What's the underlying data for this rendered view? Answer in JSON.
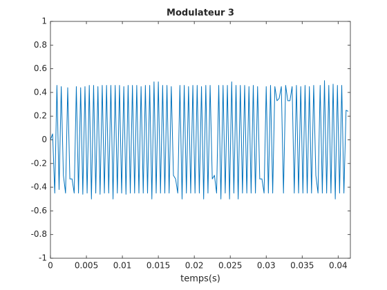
{
  "chart_data": {
    "type": "line",
    "title": "Modulateur 3",
    "x_label": "temps(s)",
    "x": [
      0,
      0.0003,
      0.0006,
      0.0009,
      0.0012,
      0.0015,
      0.0018,
      0.0021,
      0.0024,
      0.0027,
      0.003,
      0.0033,
      0.0036,
      0.0039,
      0.0042,
      0.0045,
      0.0048,
      0.0051,
      0.0054,
      0.0057,
      0.006,
      0.0063,
      0.0066,
      0.0069,
      0.0072,
      0.0075,
      0.0078,
      0.0081,
      0.0084,
      0.0087,
      0.009,
      0.0093,
      0.0096,
      0.0099,
      0.0102,
      0.0105,
      0.0108,
      0.0111,
      0.0114,
      0.0117,
      0.012,
      0.0123,
      0.0126,
      0.0129,
      0.0132,
      0.0135,
      0.0138,
      0.0141,
      0.0144,
      0.0147,
      0.015,
      0.0153,
      0.0156,
      0.0159,
      0.0162,
      0.0165,
      0.0168,
      0.0171,
      0.0174,
      0.0177,
      0.018,
      0.0183,
      0.0186,
      0.0189,
      0.0192,
      0.0195,
      0.0198,
      0.0201,
      0.0204,
      0.0207,
      0.021,
      0.0213,
      0.0216,
      0.0219,
      0.0222,
      0.0225,
      0.0228,
      0.0231,
      0.0234,
      0.0237,
      0.024,
      0.0243,
      0.0246,
      0.0249,
      0.0252,
      0.0255,
      0.0258,
      0.0261,
      0.0264,
      0.0267,
      0.027,
      0.0273,
      0.0276,
      0.0279,
      0.0282,
      0.0285,
      0.0288,
      0.0291,
      0.0294,
      0.0297,
      0.03,
      0.0303,
      0.0306,
      0.0309,
      0.0312,
      0.0315,
      0.0318,
      0.0321,
      0.0324,
      0.0327,
      0.033,
      0.0333,
      0.0336,
      0.0339,
      0.0342,
      0.0345,
      0.0348,
      0.0351,
      0.0354,
      0.0357,
      0.036,
      0.0363,
      0.0366,
      0.0369,
      0.0372,
      0.0375,
      0.0378,
      0.0381,
      0.0384,
      0.0387,
      0.039,
      0.0393,
      0.0396,
      0.0399,
      0.0402,
      0.0405,
      0.0408,
      0.0411,
      0.0414
    ],
    "series": [
      {
        "color": "#0072bd",
        "values": [
          0,
          0.05,
          -0.45,
          0.46,
          -0.42,
          0.45,
          -0.3,
          -0.45,
          0.44,
          -0.33,
          -0.33,
          -0.45,
          0.45,
          -0.45,
          0.44,
          -0.46,
          0.45,
          -0.45,
          0.46,
          -0.5,
          0.46,
          -0.45,
          0.45,
          -0.46,
          0.46,
          -0.45,
          0.46,
          -0.45,
          0.46,
          -0.5,
          0.46,
          -0.45,
          0.46,
          -0.45,
          0.45,
          -0.46,
          0.46,
          -0.45,
          0.46,
          -0.45,
          0.46,
          -0.45,
          0.45,
          -0.45,
          0.46,
          -0.45,
          0.46,
          -0.5,
          0.49,
          -0.45,
          0.49,
          -0.45,
          0.46,
          -0.45,
          0.46,
          -0.45,
          0.45,
          -0.3,
          -0.33,
          -0.45,
          0.46,
          -0.5,
          0.46,
          -0.45,
          0.45,
          -0.45,
          0.46,
          -0.45,
          0.46,
          -0.45,
          0.45,
          -0.5,
          0.46,
          -0.45,
          0.46,
          -0.33,
          -0.3,
          -0.45,
          0.46,
          -0.5,
          0.46,
          -0.45,
          0.46,
          -0.5,
          0.49,
          -0.45,
          0.46,
          -0.5,
          0.46,
          -0.45,
          0.46,
          -0.45,
          0.45,
          -0.45,
          0.46,
          -0.45,
          0.45,
          -0.33,
          -0.33,
          -0.45,
          0.45,
          -0.45,
          0.46,
          -0.45,
          0.45,
          0.33,
          0.35,
          0.45,
          -0.45,
          0.46,
          0.33,
          0.33,
          0.45,
          -0.45,
          0.46,
          -0.45,
          0.45,
          -0.45,
          0.46,
          -0.45,
          0.45,
          -0.45,
          0.46,
          -0.3,
          -0.45,
          0.46,
          -0.45,
          0.5,
          -0.45,
          0.46,
          -0.45,
          0.47,
          -0.5,
          0.46,
          -0.45,
          0.46,
          -0.45,
          0.25,
          0.24
        ]
      }
    ],
    "xlim": [
      0,
      0.0417
    ],
    "ylim": [
      -1,
      1
    ],
    "xticks": [
      0,
      0.005,
      0.01,
      0.015,
      0.02,
      0.025,
      0.03,
      0.035,
      0.04
    ],
    "yticks": [
      -1,
      -0.8,
      -0.6,
      -0.4,
      -0.2,
      0,
      0.2,
      0.4,
      0.6,
      0.8,
      1
    ]
  }
}
